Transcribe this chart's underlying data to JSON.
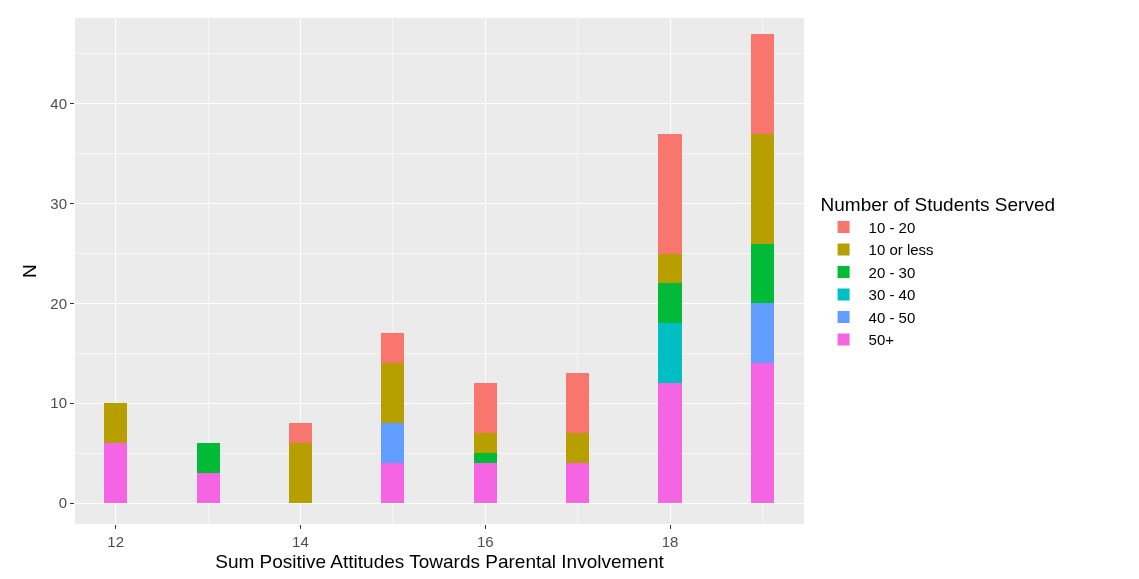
{
  "chart_data": {
    "type": "bar",
    "stacked": true,
    "xlabel": "Sum Positive Attitudes Towards Parental Involvement",
    "ylabel": "N",
    "legend_title": "Number of Students Served",
    "legend": "right",
    "grid": true,
    "x": [
      12,
      13,
      14,
      15,
      16,
      17,
      18,
      19
    ],
    "xlim": [
      11.56,
      19.45
    ],
    "xticks": [
      12,
      14,
      16,
      18
    ],
    "ylim": [
      -2.1,
      48.6
    ],
    "yticks": [
      0,
      10,
      20,
      30,
      40
    ],
    "series": [
      {
        "name": "50+",
        "color": "#f564e3",
        "values": [
          6,
          3,
          null,
          4,
          4,
          4,
          12,
          14
        ]
      },
      {
        "name": "40 - 50",
        "color": "#619cff",
        "values": [
          null,
          null,
          null,
          4,
          null,
          null,
          null,
          6
        ]
      },
      {
        "name": "30 - 40",
        "color": "#00bfc4",
        "values": [
          null,
          null,
          null,
          null,
          null,
          null,
          6,
          null
        ]
      },
      {
        "name": "20 - 30",
        "color": "#00ba38",
        "values": [
          null,
          3,
          null,
          null,
          1,
          null,
          4,
          6
        ]
      },
      {
        "name": "10 or less",
        "color": "#b79f00",
        "values": [
          4,
          null,
          6,
          6,
          2,
          3,
          3,
          11
        ]
      },
      {
        "name": "10 - 20",
        "color": "#f8766d",
        "values": [
          null,
          null,
          2,
          3,
          5,
          6,
          12,
          10
        ]
      }
    ]
  }
}
